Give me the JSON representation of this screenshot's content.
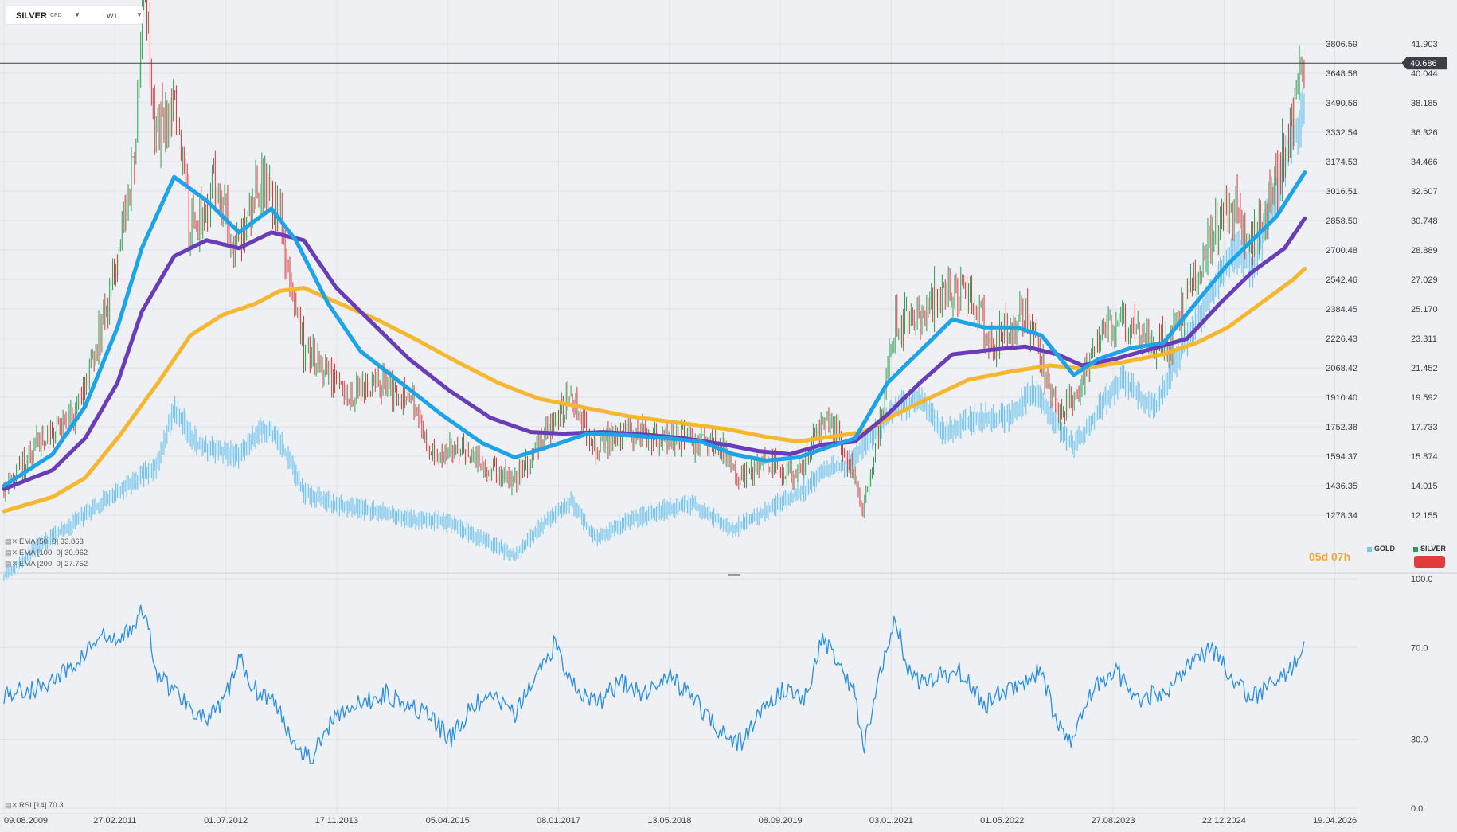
{
  "toolbar": {
    "symbol": "SILVER",
    "symbol_type": "CFD",
    "timeframe": "W1"
  },
  "indicators": {
    "ema50": "EMA [50, 0] 33.863",
    "ema100": "EMA [100, 0] 30.962",
    "ema200": "EMA [200, 0] 27.752",
    "rsi": "RSI [14] 70.3"
  },
  "timer": "05d 07h",
  "legend": {
    "gold": "GOLD",
    "silver": "SILVER"
  },
  "colors": {
    "silver_up": "#2e9e52",
    "silver_down": "#d9363e",
    "gold": "#78c6ee",
    "ema50": "#1ea3e6",
    "ema100": "#6a3db8",
    "ema200": "#f5b730",
    "rsi": "#2b8fe0",
    "background": "#eef0f3"
  },
  "chart_data": [
    {
      "type": "candlestick",
      "series": [
        {
          "name": "SILVER",
          "axis": "right",
          "ema50_end": 33.863,
          "ema100_end": 30.962,
          "ema200_end": 27.752,
          "last": 40.686
        },
        {
          "name": "GOLD",
          "axis": "left",
          "style": "line"
        }
      ],
      "x_tick_labels": [
        "09.08.2009",
        "27.02.2011",
        "01.07.2012",
        "17.11.2013",
        "05.04.2015",
        "08.01.2017",
        "13.05.2018",
        "08.09.2019",
        "03.01.2021",
        "01.05.2022",
        "27.08.2023",
        "22.12.2024",
        "19.04.2026"
      ],
      "left_axis_ticks": [
        "3806.59",
        "3648.58",
        "3490.56",
        "3332.54",
        "3174.53",
        "3016.51",
        "2858.50",
        "2700.48",
        "2542.46",
        "2384.45",
        "2226.43",
        "2068.42",
        "1910.40",
        "1752.38",
        "1594.37",
        "1436.35",
        "1278.34"
      ],
      "right_axis_ticks": [
        "41.903",
        "40.044",
        "38.185",
        "36.326",
        "34.466",
        "32.607",
        "30.748",
        "28.889",
        "27.029",
        "25.170",
        "23.311",
        "21.452",
        "19.592",
        "17.733",
        "15.874",
        "14.015",
        "12.155"
      ],
      "price_label": "40.686",
      "silver_path": [
        [
          2009.6,
          14.0
        ],
        [
          2010.0,
          16.5
        ],
        [
          2010.5,
          18.5
        ],
        [
          2010.9,
          26.0
        ],
        [
          2011.2,
          34.0
        ],
        [
          2011.33,
          46.0
        ],
        [
          2011.45,
          36.0
        ],
        [
          2011.7,
          38.0
        ],
        [
          2011.9,
          30.0
        ],
        [
          2012.2,
          33.0
        ],
        [
          2012.5,
          29.0
        ],
        [
          2012.75,
          33.5
        ],
        [
          2013.0,
          31.0
        ],
        [
          2013.3,
          23.0
        ],
        [
          2013.6,
          21.0
        ],
        [
          2013.9,
          20.0
        ],
        [
          2014.3,
          20.5
        ],
        [
          2014.6,
          19.5
        ],
        [
          2014.9,
          16.0
        ],
        [
          2015.2,
          16.5
        ],
        [
          2015.6,
          15.0
        ],
        [
          2015.9,
          14.2
        ],
        [
          2016.3,
          17.5
        ],
        [
          2016.6,
          19.5
        ],
        [
          2016.9,
          16.5
        ],
        [
          2017.3,
          17.5
        ],
        [
          2017.7,
          17.0
        ],
        [
          2018.0,
          17.0
        ],
        [
          2018.4,
          16.5
        ],
        [
          2018.7,
          14.5
        ],
        [
          2019.0,
          15.5
        ],
        [
          2019.4,
          14.8
        ],
        [
          2019.7,
          18.0
        ],
        [
          2019.9,
          17.5
        ],
        [
          2020.2,
          12.5
        ],
        [
          2020.4,
          17.5
        ],
        [
          2020.6,
          24.5
        ],
        [
          2020.9,
          24.0
        ],
        [
          2021.1,
          26.0
        ],
        [
          2021.5,
          26.0
        ],
        [
          2021.8,
          23.0
        ],
        [
          2022.2,
          25.0
        ],
        [
          2022.6,
          18.5
        ],
        [
          2022.8,
          19.5
        ],
        [
          2023.1,
          23.5
        ],
        [
          2023.4,
          24.0
        ],
        [
          2023.7,
          23.0
        ],
        [
          2024.0,
          23.0
        ],
        [
          2024.3,
          27.0
        ],
        [
          2024.5,
          30.0
        ],
        [
          2024.8,
          32.0
        ],
        [
          2025.0,
          29.0
        ],
        [
          2025.3,
          33.0
        ],
        [
          2025.5,
          37.0
        ],
        [
          2025.66,
          40.7
        ]
      ],
      "gold_path": [
        [
          2009.6,
          950
        ],
        [
          2010.0,
          1100
        ],
        [
          2010.5,
          1250
        ],
        [
          2011.0,
          1400
        ],
        [
          2011.5,
          1550
        ],
        [
          2011.7,
          1850
        ],
        [
          2012.0,
          1650
        ],
        [
          2012.5,
          1600
        ],
        [
          2012.8,
          1750
        ],
        [
          2013.0,
          1680
        ],
        [
          2013.3,
          1400
        ],
        [
          2013.7,
          1330
        ],
        [
          2014.2,
          1300
        ],
        [
          2014.7,
          1250
        ],
        [
          2015.0,
          1250
        ],
        [
          2015.5,
          1150
        ],
        [
          2015.9,
          1060
        ],
        [
          2016.3,
          1250
        ],
        [
          2016.6,
          1350
        ],
        [
          2016.9,
          1150
        ],
        [
          2017.3,
          1250
        ],
        [
          2017.7,
          1300
        ],
        [
          2018.1,
          1340
        ],
        [
          2018.6,
          1200
        ],
        [
          2019.0,
          1300
        ],
        [
          2019.5,
          1420
        ],
        [
          2019.7,
          1520
        ],
        [
          2020.0,
          1550
        ],
        [
          2020.6,
          1850
        ],
        [
          2020.9,
          1900
        ],
        [
          2021.2,
          1720
        ],
        [
          2021.6,
          1800
        ],
        [
          2022.0,
          1800
        ],
        [
          2022.3,
          1950
        ],
        [
          2022.8,
          1640
        ],
        [
          2023.2,
          1900
        ],
        [
          2023.4,
          2000
        ],
        [
          2023.8,
          1850
        ],
        [
          2024.0,
          2050
        ],
        [
          2024.3,
          2300
        ],
        [
          2024.8,
          2700
        ],
        [
          2025.0,
          2600
        ],
        [
          2025.3,
          3000
        ],
        [
          2025.5,
          3300
        ],
        [
          2025.66,
          3450
        ]
      ],
      "ema50_path": [
        [
          2009.6,
          14.0
        ],
        [
          2010.2,
          16.0
        ],
        [
          2010.6,
          19.0
        ],
        [
          2011.0,
          24.0
        ],
        [
          2011.3,
          29.0
        ],
        [
          2011.7,
          33.5
        ],
        [
          2012.1,
          32.0
        ],
        [
          2012.5,
          30.0
        ],
        [
          2012.9,
          31.5
        ],
        [
          2013.2,
          29.5
        ],
        [
          2013.6,
          25.5
        ],
        [
          2014.0,
          22.5
        ],
        [
          2014.5,
          20.5
        ],
        [
          2015.0,
          18.5
        ],
        [
          2015.5,
          16.7
        ],
        [
          2015.9,
          15.8
        ],
        [
          2016.4,
          16.6
        ],
        [
          2016.8,
          17.3
        ],
        [
          2017.3,
          17.2
        ],
        [
          2017.8,
          17.0
        ],
        [
          2018.2,
          16.8
        ],
        [
          2018.6,
          16.0
        ],
        [
          2019.0,
          15.6
        ],
        [
          2019.4,
          15.8
        ],
        [
          2019.8,
          16.5
        ],
        [
          2020.1,
          17.0
        ],
        [
          2020.5,
          20.5
        ],
        [
          2020.9,
          22.5
        ],
        [
          2021.3,
          24.5
        ],
        [
          2021.7,
          24.0
        ],
        [
          2022.1,
          24.0
        ],
        [
          2022.4,
          23.5
        ],
        [
          2022.8,
          21.0
        ],
        [
          2023.1,
          22.0
        ],
        [
          2023.5,
          22.7
        ],
        [
          2023.9,
          23.0
        ],
        [
          2024.3,
          25.5
        ],
        [
          2024.7,
          28.0
        ],
        [
          2025.0,
          29.5
        ],
        [
          2025.3,
          31.0
        ],
        [
          2025.66,
          33.863
        ]
      ],
      "ema100_path": [
        [
          2009.6,
          13.8
        ],
        [
          2010.2,
          15.0
        ],
        [
          2010.6,
          17.0
        ],
        [
          2011.0,
          20.5
        ],
        [
          2011.3,
          25.0
        ],
        [
          2011.7,
          28.5
        ],
        [
          2012.1,
          29.5
        ],
        [
          2012.5,
          29.0
        ],
        [
          2012.9,
          30.0
        ],
        [
          2013.3,
          29.5
        ],
        [
          2013.7,
          26.5
        ],
        [
          2014.2,
          24.0
        ],
        [
          2014.6,
          22.0
        ],
        [
          2015.1,
          20.0
        ],
        [
          2015.6,
          18.3
        ],
        [
          2016.1,
          17.4
        ],
        [
          2016.5,
          17.3
        ],
        [
          2017.0,
          17.4
        ],
        [
          2017.6,
          17.2
        ],
        [
          2018.0,
          17.0
        ],
        [
          2018.5,
          16.6
        ],
        [
          2018.9,
          16.2
        ],
        [
          2019.3,
          16.0
        ],
        [
          2019.7,
          16.6
        ],
        [
          2020.1,
          16.8
        ],
        [
          2020.5,
          18.5
        ],
        [
          2020.9,
          20.5
        ],
        [
          2021.3,
          22.3
        ],
        [
          2021.8,
          22.6
        ],
        [
          2022.2,
          22.8
        ],
        [
          2022.6,
          22.3
        ],
        [
          2022.9,
          21.6
        ],
        [
          2023.3,
          22.0
        ],
        [
          2023.8,
          22.7
        ],
        [
          2024.2,
          23.3
        ],
        [
          2024.6,
          25.5
        ],
        [
          2025.0,
          27.5
        ],
        [
          2025.4,
          29.0
        ],
        [
          2025.66,
          30.962
        ]
      ],
      "ema200_path": [
        [
          2009.6,
          12.4
        ],
        [
          2010.2,
          13.3
        ],
        [
          2010.6,
          14.5
        ],
        [
          2011.0,
          17.0
        ],
        [
          2011.5,
          20.5
        ],
        [
          2011.9,
          23.5
        ],
        [
          2012.3,
          24.8
        ],
        [
          2012.7,
          25.5
        ],
        [
          2013.0,
          26.3
        ],
        [
          2013.3,
          26.5
        ],
        [
          2013.7,
          25.6
        ],
        [
          2014.2,
          24.5
        ],
        [
          2014.7,
          23.2
        ],
        [
          2015.2,
          21.8
        ],
        [
          2015.7,
          20.5
        ],
        [
          2016.2,
          19.5
        ],
        [
          2016.8,
          18.9
        ],
        [
          2017.3,
          18.4
        ],
        [
          2017.9,
          18.0
        ],
        [
          2018.5,
          17.6
        ],
        [
          2019.0,
          17.1
        ],
        [
          2019.4,
          16.8
        ],
        [
          2019.8,
          17.1
        ],
        [
          2020.2,
          17.4
        ],
        [
          2020.6,
          18.5
        ],
        [
          2021.0,
          19.5
        ],
        [
          2021.5,
          20.7
        ],
        [
          2022.0,
          21.2
        ],
        [
          2022.5,
          21.6
        ],
        [
          2022.9,
          21.4
        ],
        [
          2023.4,
          21.8
        ],
        [
          2023.9,
          22.3
        ],
        [
          2024.3,
          23.0
        ],
        [
          2024.7,
          24.0
        ],
        [
          2025.1,
          25.5
        ],
        [
          2025.5,
          27.0
        ],
        [
          2025.66,
          27.752
        ]
      ]
    },
    {
      "type": "line",
      "series": [
        {
          "name": "RSI",
          "last": 70.3
        }
      ],
      "y_ticks": [
        "100.0",
        "70.0",
        "30.0",
        "0.0"
      ],
      "ylim": [
        0,
        100
      ],
      "rsi_path": [
        [
          2009.6,
          50
        ],
        [
          2010.0,
          52
        ],
        [
          2010.4,
          60
        ],
        [
          2010.8,
          75
        ],
        [
          2011.0,
          72
        ],
        [
          2011.33,
          86
        ],
        [
          2011.5,
          58
        ],
        [
          2011.8,
          48
        ],
        [
          2012.1,
          38
        ],
        [
          2012.3,
          45
        ],
        [
          2012.5,
          65
        ],
        [
          2012.7,
          52
        ],
        [
          2012.9,
          48
        ],
        [
          2013.2,
          28
        ],
        [
          2013.4,
          22
        ],
        [
          2013.7,
          42
        ],
        [
          2014.0,
          45
        ],
        [
          2014.3,
          50
        ],
        [
          2014.6,
          46
        ],
        [
          2014.9,
          38
        ],
        [
          2015.1,
          30
        ],
        [
          2015.4,
          45
        ],
        [
          2015.7,
          48
        ],
        [
          2015.9,
          40
        ],
        [
          2016.2,
          60
        ],
        [
          2016.4,
          72
        ],
        [
          2016.6,
          55
        ],
        [
          2016.9,
          45
        ],
        [
          2017.2,
          55
        ],
        [
          2017.5,
          50
        ],
        [
          2017.8,
          58
        ],
        [
          2018.1,
          48
        ],
        [
          2018.4,
          35
        ],
        [
          2018.7,
          28
        ],
        [
          2018.9,
          40
        ],
        [
          2019.2,
          52
        ],
        [
          2019.5,
          48
        ],
        [
          2019.7,
          75
        ],
        [
          2019.9,
          62
        ],
        [
          2020.1,
          50
        ],
        [
          2020.2,
          25
        ],
        [
          2020.4,
          60
        ],
        [
          2020.6,
          82
        ],
        [
          2020.8,
          55
        ],
        [
          2021.1,
          58
        ],
        [
          2021.4,
          60
        ],
        [
          2021.7,
          45
        ],
        [
          2021.9,
          50
        ],
        [
          2022.2,
          55
        ],
        [
          2022.4,
          60
        ],
        [
          2022.6,
          35
        ],
        [
          2022.8,
          30
        ],
        [
          2023.0,
          50
        ],
        [
          2023.3,
          60
        ],
        [
          2023.6,
          48
        ],
        [
          2023.9,
          50
        ],
        [
          2024.2,
          62
        ],
        [
          2024.5,
          70
        ],
        [
          2024.8,
          55
        ],
        [
          2025.0,
          48
        ],
        [
          2025.3,
          55
        ],
        [
          2025.5,
          62
        ],
        [
          2025.66,
          70.3
        ]
      ]
    }
  ]
}
